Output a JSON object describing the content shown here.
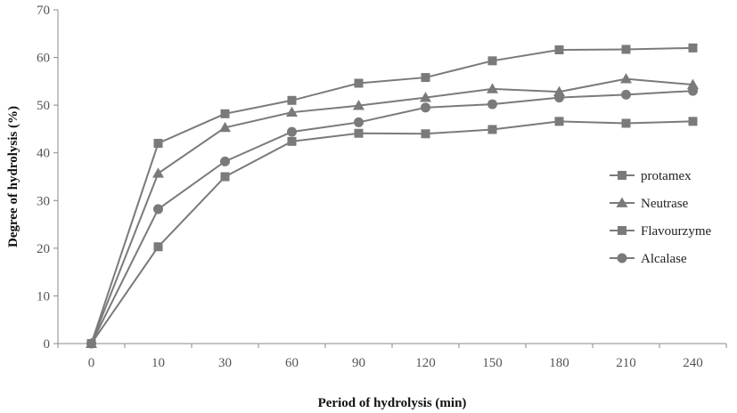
{
  "chart_data": {
    "type": "line",
    "categories": [
      "0",
      "10",
      "30",
      "60",
      "90",
      "120",
      "150",
      "180",
      "210",
      "240"
    ],
    "xlabel": "Period of hydrolysis  (min)",
    "ylabel": "Degree of hydrolysis  (%)",
    "ylim": [
      0,
      70
    ],
    "yticks": [
      0,
      10,
      20,
      30,
      40,
      50,
      60,
      70
    ],
    "grid": false,
    "legend_position": "right",
    "series": [
      {
        "name": "protamex",
        "marker": "square",
        "color": "#7a7a7a",
        "values": [
          0,
          42.0,
          48.2,
          51.0,
          54.6,
          55.8,
          59.3,
          61.6,
          61.7,
          62.0
        ]
      },
      {
        "name": "Neutrase",
        "marker": "triangle",
        "color": "#7a7a7a",
        "values": [
          0,
          35.7,
          45.3,
          48.5,
          49.9,
          51.6,
          53.4,
          52.8,
          55.5,
          54.3
        ]
      },
      {
        "name": "Flavourzyme",
        "marker": "square",
        "color": "#7a7a7a",
        "values": [
          0,
          20.3,
          35.0,
          42.4,
          44.1,
          44.0,
          44.9,
          46.6,
          46.2,
          46.6
        ]
      },
      {
        "name": "Alcalase",
        "marker": "circle",
        "color": "#7a7a7a",
        "values": [
          0,
          28.2,
          38.2,
          44.4,
          46.4,
          49.5,
          50.2,
          51.6,
          52.2,
          53.0
        ]
      }
    ]
  }
}
